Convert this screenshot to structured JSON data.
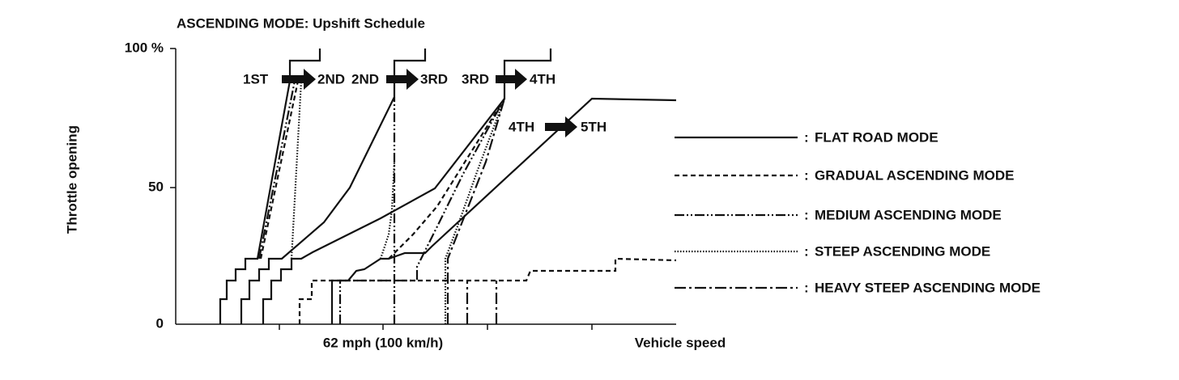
{
  "title": "ASCENDING MODE: Upshift Schedule",
  "y_axis": {
    "label": "Throttle opening",
    "ticks": [
      "100 %",
      "50",
      "0"
    ]
  },
  "x_axis": {
    "speed_mark": "62 mph (100 km/h)",
    "label": "Vehicle speed"
  },
  "shifts": [
    {
      "from": "1ST",
      "to": "2ND"
    },
    {
      "from": "2ND",
      "to": "3RD"
    },
    {
      "from": "3RD",
      "to": "4TH"
    },
    {
      "from": "4TH",
      "to": "5TH"
    }
  ],
  "legend": [
    "FLAT ROAD MODE",
    "GRADUAL ASCENDING MODE",
    "MEDIUM ASCENDING MODE",
    "STEEP ASCENDING MODE",
    "HEAVY STEEP ASCENDING MODE"
  ]
}
